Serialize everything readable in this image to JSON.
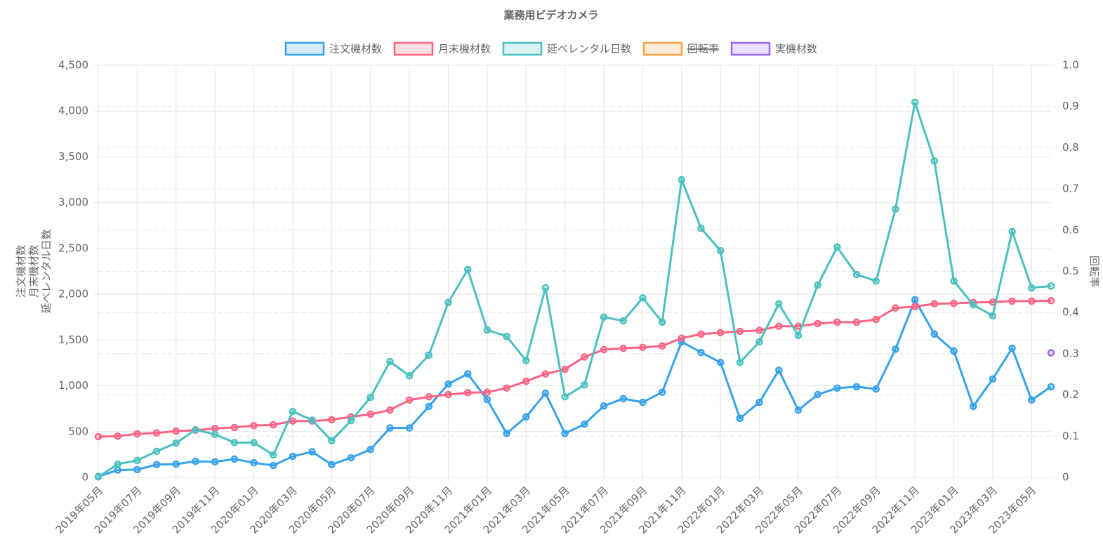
{
  "chart_data": {
    "type": "line",
    "title": "業務用ビデオカメラ",
    "y_label": [
      "注文機材数",
      "月末機材数",
      "延べレンタル日数"
    ],
    "y2_label": "回転率",
    "categories": [
      "2019年05月",
      null,
      "2019年07月",
      null,
      "2019年09月",
      null,
      "2019年11月",
      null,
      "2020年01月",
      null,
      "2020年03月",
      null,
      "2020年05月",
      null,
      "2020年07月",
      null,
      "2020年09月",
      null,
      "2020年11月",
      null,
      "2021年01月",
      null,
      "2021年03月",
      null,
      "2021年05月",
      null,
      "2021年07月",
      null,
      "2021年09月",
      null,
      "2021年11月",
      null,
      "2022年01月",
      null,
      "2022年03月",
      null,
      "2022年05月",
      null,
      "2022年07月",
      null,
      "2022年09月",
      null,
      "2022年11月",
      null,
      "2023年01月",
      null,
      "2023年03月",
      null,
      "2023年05月",
      null
    ],
    "series": [
      {
        "name": "注文機材数",
        "color": "#36a2eb",
        "values": [
          10,
          80,
          85,
          140,
          145,
          175,
          170,
          200,
          160,
          130,
          230,
          280,
          140,
          215,
          305,
          540,
          540,
          775,
          1020,
          1130,
          850,
          480,
          660,
          920,
          480,
          580,
          780,
          860,
          820,
          930,
          1480,
          1365,
          1255,
          645,
          820,
          1170,
          735,
          905,
          975,
          990,
          965,
          1400,
          1940,
          1565,
          1380,
          775,
          1075,
          1410,
          845,
          990
        ]
      },
      {
        "name": "月末機材数",
        "color": "#ff6384",
        "values": [
          445,
          450,
          475,
          485,
          505,
          515,
          535,
          545,
          565,
          575,
          615,
          615,
          630,
          660,
          690,
          735,
          845,
          880,
          905,
          925,
          930,
          975,
          1050,
          1130,
          1180,
          1315,
          1395,
          1410,
          1420,
          1435,
          1520,
          1565,
          1580,
          1595,
          1605,
          1650,
          1650,
          1680,
          1695,
          1695,
          1725,
          1850,
          1865,
          1895,
          1900,
          1910,
          1915,
          1925,
          1925,
          1930
        ]
      },
      {
        "name": "延べレンタル日数",
        "color": "#4bc0c0",
        "values": [
          5,
          145,
          185,
          285,
          375,
          520,
          470,
          380,
          380,
          245,
          720,
          625,
          400,
          620,
          875,
          1265,
          1110,
          1335,
          1910,
          2270,
          1610,
          1540,
          1275,
          2070,
          880,
          1010,
          1750,
          1710,
          1960,
          1695,
          3250,
          2720,
          2475,
          1255,
          1480,
          1895,
          1550,
          2100,
          2515,
          2215,
          2145,
          2930,
          4095,
          3455,
          2145,
          1885,
          1765,
          2685,
          2070,
          2090
        ]
      },
      {
        "name": "回転率",
        "color": "#ff9f40",
        "axis": "y2",
        "hidden": true,
        "values": [
          null,
          null,
          null,
          null,
          null,
          null,
          null,
          null,
          null,
          null,
          null,
          null,
          null,
          null,
          null,
          null,
          null,
          null,
          null,
          null,
          null,
          null,
          null,
          null,
          null,
          null,
          null,
          null,
          null,
          null,
          null,
          null,
          null,
          null,
          null,
          null,
          null,
          null,
          null,
          null,
          null,
          null,
          null,
          null,
          null,
          null,
          null,
          null,
          null,
          null
        ]
      },
      {
        "name": "実機材数",
        "color": "#9966ff",
        "values": [
          null,
          null,
          null,
          null,
          null,
          null,
          null,
          null,
          null,
          null,
          null,
          null,
          null,
          null,
          null,
          null,
          null,
          null,
          null,
          null,
          null,
          null,
          null,
          null,
          null,
          null,
          null,
          null,
          null,
          null,
          null,
          null,
          null,
          null,
          null,
          null,
          null,
          null,
          null,
          null,
          null,
          null,
          null,
          null,
          null,
          null,
          null,
          null,
          null,
          1360
        ]
      }
    ],
    "ylim": [
      0,
      4500
    ],
    "yticks": [
      0,
      500,
      {
        "value": 1000,
        "label": "1,000"
      },
      {
        "value": 1500,
        "label": "1,500"
      },
      {
        "value": 2000,
        "label": "2,000"
      },
      {
        "value": 2500,
        "label": "2,500"
      },
      {
        "value": 3000,
        "label": "3,000"
      },
      {
        "value": 3500,
        "label": "3,500"
      },
      {
        "value": 4000,
        "label": "4,000"
      },
      {
        "value": 4500,
        "label": "4,500"
      }
    ],
    "y2lim": [
      0,
      1
    ],
    "y2ticks": [
      0,
      0.1,
      0.2,
      0.3,
      0.4,
      0.5,
      0.6,
      0.7,
      0.8,
      0.9,
      {
        "value": 1,
        "label": "1.0"
      }
    ],
    "grid": true,
    "legend": "top"
  }
}
